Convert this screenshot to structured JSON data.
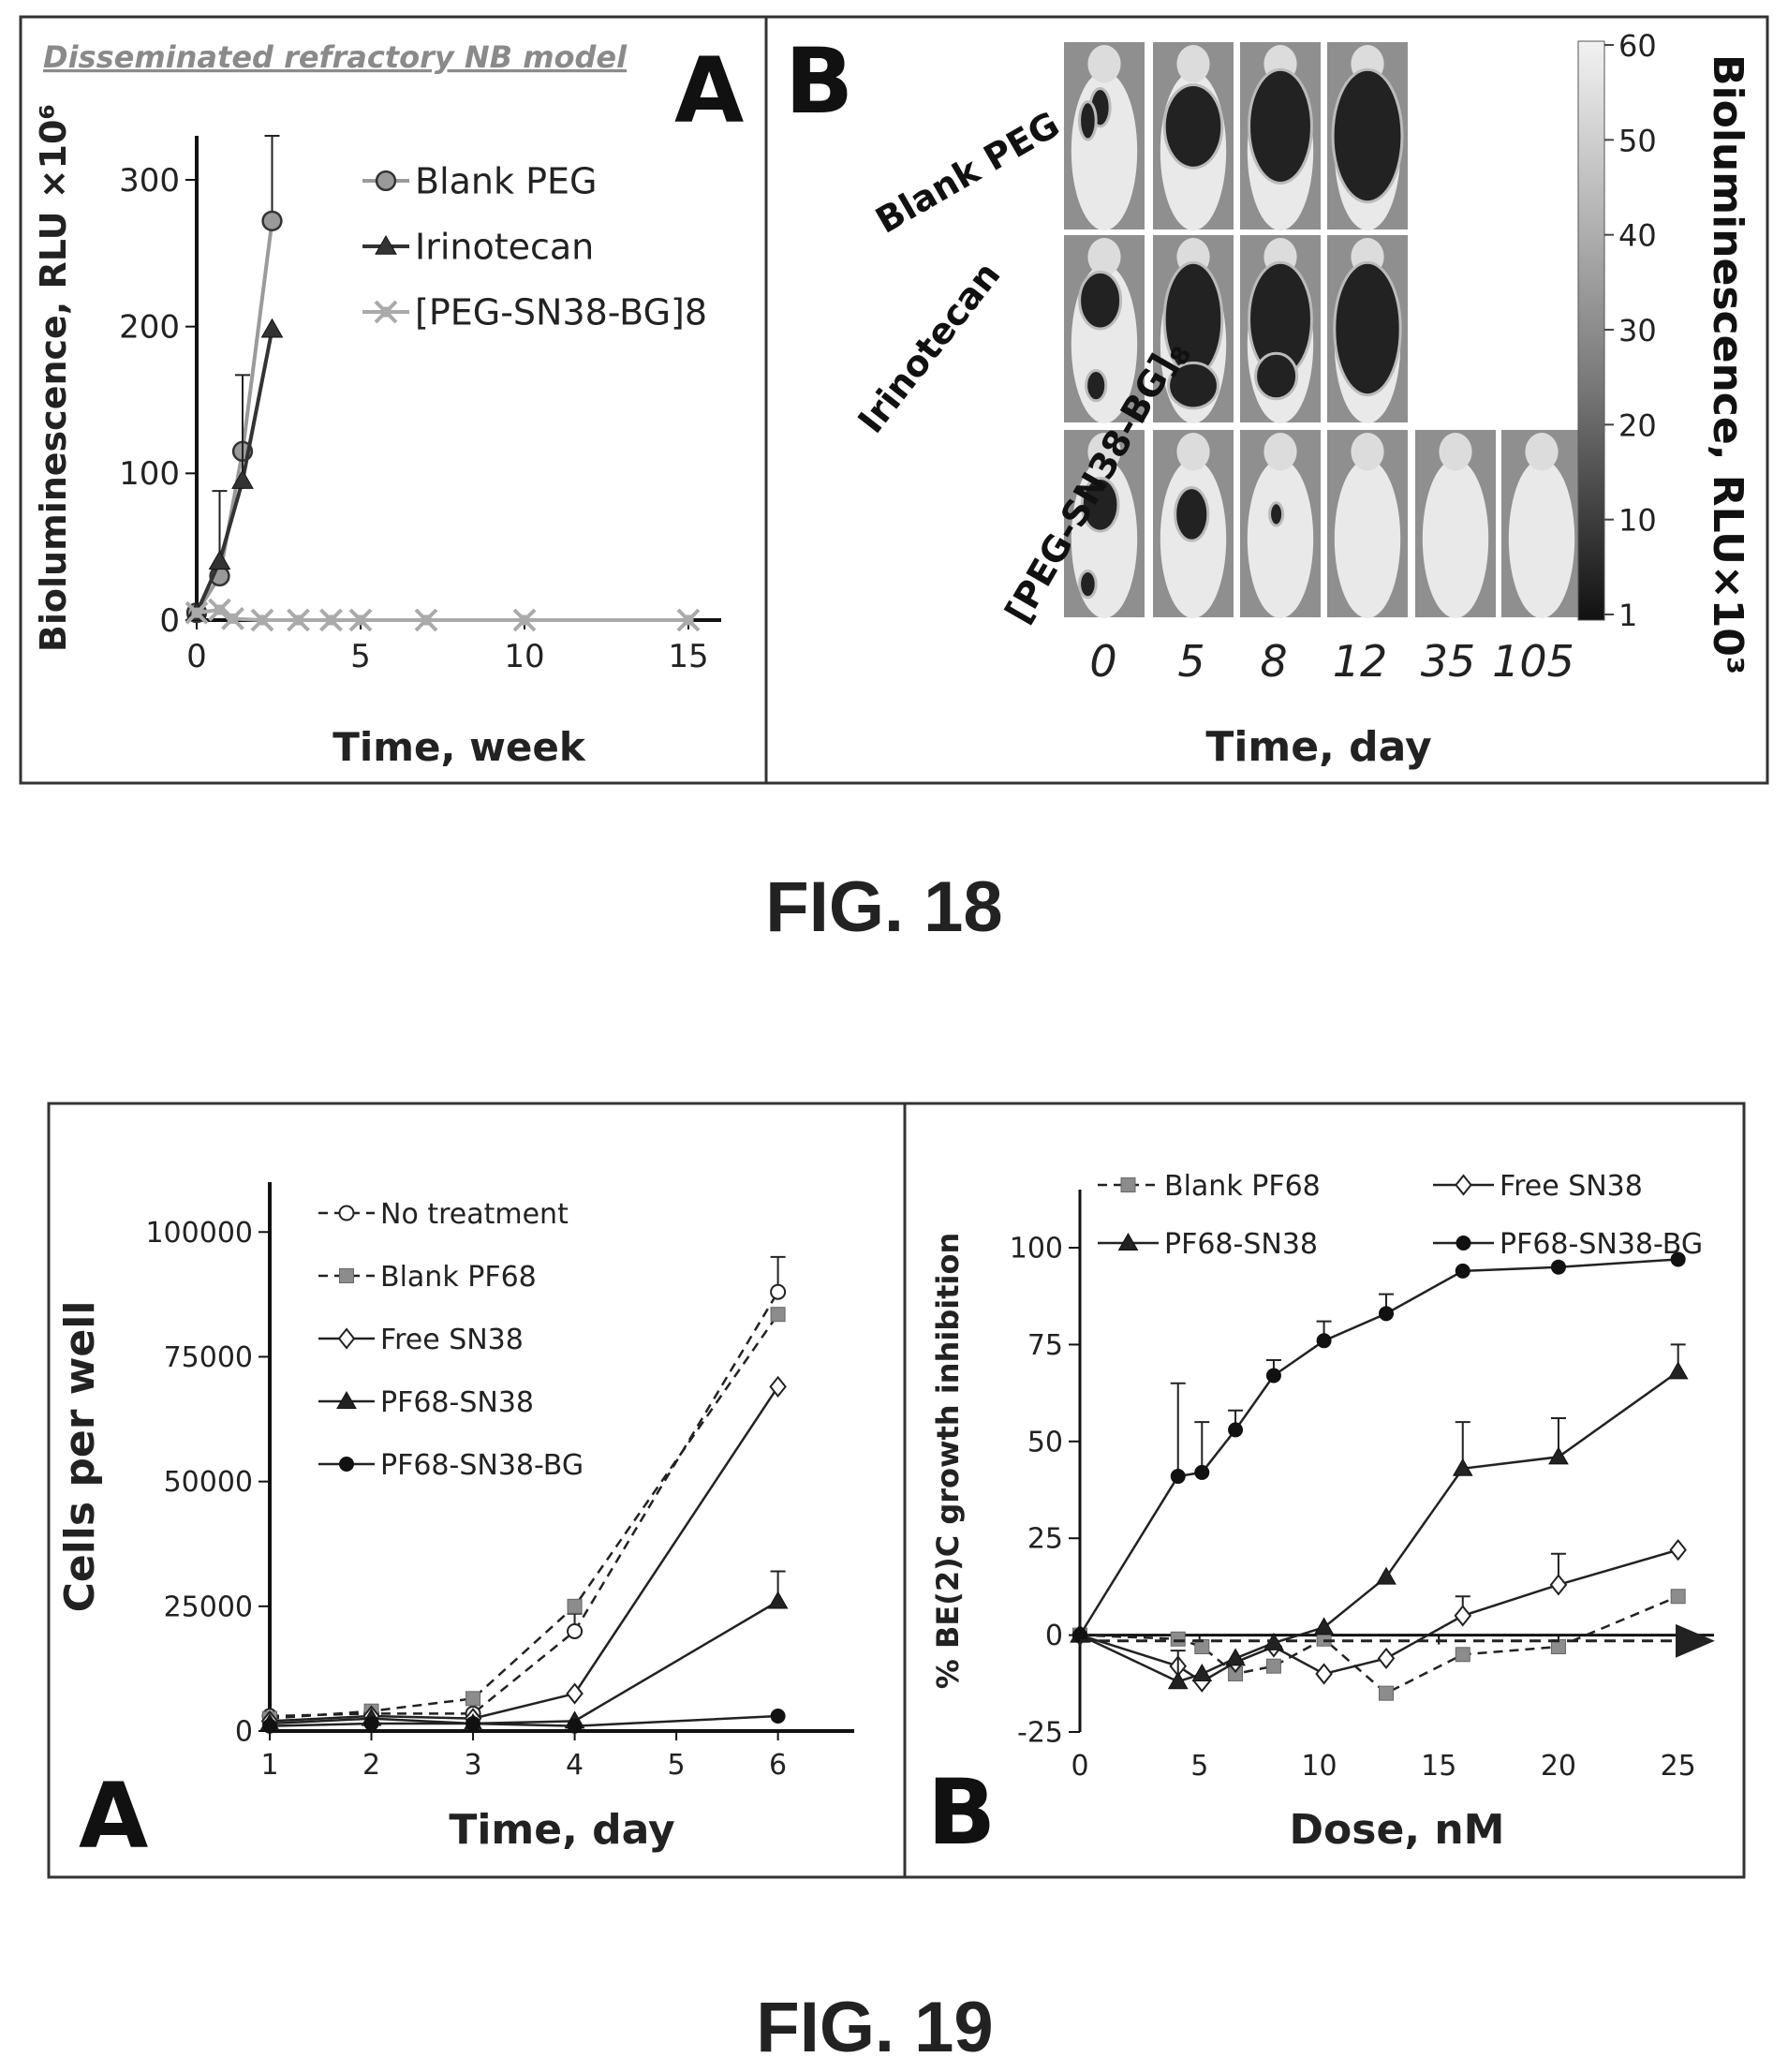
{
  "figures": [
    {
      "label": "FIG. 18"
    },
    {
      "label": "FIG. 19"
    }
  ],
  "fig18": {
    "panelA": {
      "letter": "A",
      "model_title": "Disseminated refractory NB model"
    },
    "panelB": {
      "letter": "B",
      "row_labels": [
        "Blank PEG",
        "Irinotecan",
        "[PEG-SN38-BG]8"
      ],
      "day_labels": [
        "0",
        "5",
        "8",
        "12",
        "35",
        "105"
      ],
      "xlabel": "Time, day",
      "colorbar_label": "Bioluminescence, RLU×10³",
      "colorbar_ticks": [
        "60",
        "50",
        "40",
        "30",
        "20",
        "10",
        "1"
      ]
    }
  },
  "fig19": {
    "panelA": {
      "letter": "A"
    },
    "panelB": {
      "letter": "B"
    }
  },
  "chart_data": [
    {
      "id": "fig18A",
      "type": "line",
      "title": "Disseminated refractory NB model",
      "xlabel": "Time, week",
      "ylabel": "Bioluminescence, RLU ×10⁶",
      "xlim": [
        0,
        16
      ],
      "ylim": [
        0,
        330
      ],
      "xticks": [
        "0",
        "5",
        "10",
        "15"
      ],
      "yticks": [
        "0",
        "100",
        "200",
        "300"
      ],
      "grid": false,
      "legend": "top-right",
      "series": [
        {
          "name": "Blank PEG",
          "marker": "circle",
          "color": "#9a9a9a",
          "x": [
            0,
            0.7,
            1.4,
            2.3
          ],
          "y": [
            5,
            30,
            115,
            272
          ],
          "err": [
            0,
            0,
            0,
            58
          ]
        },
        {
          "name": "Irinotecan",
          "marker": "triangle",
          "color": "#333333",
          "x": [
            0,
            0.7,
            1.4,
            2.3
          ],
          "y": [
            5,
            40,
            95,
            198
          ],
          "err": [
            0,
            48,
            72,
            0
          ]
        },
        {
          "name": "[PEG-SN38-BG]8",
          "marker": "x",
          "color": "#aaaaaa",
          "x": [
            0,
            0.7,
            1.1,
            2.0,
            3.1,
            4.1,
            5.0,
            7.0,
            10.0,
            15.0
          ],
          "y": [
            5,
            7,
            1,
            0,
            0,
            0,
            0,
            0,
            0,
            0
          ],
          "err": [
            0,
            0,
            0,
            0,
            0,
            0,
            0,
            0,
            0,
            0
          ]
        }
      ]
    },
    {
      "id": "fig19A",
      "type": "line",
      "xlabel": "Time, day",
      "ylabel": "Cells per well",
      "xlim": [
        1,
        6.75
      ],
      "ylim": [
        0,
        110000
      ],
      "xticks": [
        "1",
        "2",
        "3",
        "4",
        "5",
        "6"
      ],
      "yticks": [
        "0",
        "25000",
        "50000",
        "75000",
        "100000"
      ],
      "grid": false,
      "legend": "top-left",
      "series": [
        {
          "name": "No treatment",
          "marker": "open-circle",
          "dash": true,
          "x": [
            1,
            2,
            3,
            4,
            6
          ],
          "y": [
            3000,
            3500,
            3500,
            20000,
            88000
          ],
          "err": [
            0,
            0,
            0,
            3500,
            7000
          ]
        },
        {
          "name": "Blank PF68",
          "marker": "square",
          "dash": true,
          "x": [
            1,
            2,
            3,
            4,
            6
          ],
          "y": [
            2500,
            4000,
            6500,
            25000,
            83500
          ],
          "err": [
            0,
            0,
            0,
            0,
            0
          ]
        },
        {
          "name": "Free SN38",
          "marker": "open-diamond",
          "dash": false,
          "x": [
            1,
            2,
            3,
            4,
            6
          ],
          "y": [
            2000,
            3000,
            2500,
            7500,
            69000
          ],
          "err": [
            0,
            0,
            0,
            0,
            0
          ]
        },
        {
          "name": "PF68-SN38",
          "marker": "triangle",
          "dash": false,
          "x": [
            1,
            2,
            3,
            4,
            6
          ],
          "y": [
            1500,
            2500,
            1500,
            2000,
            26000
          ],
          "err": [
            0,
            0,
            0,
            0,
            6000
          ]
        },
        {
          "name": "PF68-SN38-BG",
          "marker": "filled-circle",
          "dash": false,
          "x": [
            1,
            2,
            3,
            4,
            6
          ],
          "y": [
            1000,
            1500,
            1500,
            1000,
            3000
          ],
          "err": [
            0,
            0,
            0,
            0,
            0
          ]
        }
      ]
    },
    {
      "id": "fig19B",
      "type": "line",
      "xlabel": "Dose, nM",
      "ylabel": "% BE(2)C growth inhibition",
      "xlim": [
        0,
        26.5
      ],
      "ylim": [
        -25,
        115
      ],
      "xticks": [
        "0",
        "5",
        "10",
        "15",
        "20",
        "25"
      ],
      "yticks": [
        "-25",
        "0",
        "25",
        "50",
        "75",
        "100"
      ],
      "grid": false,
      "legend": "top",
      "series": [
        {
          "name": "Blank PF68",
          "marker": "square",
          "dash": true,
          "x": [
            0,
            4.1,
            5.1,
            6.5,
            8.1,
            10.2,
            12.8,
            16,
            20,
            25
          ],
          "y": [
            0,
            -1,
            -3,
            -10,
            -8,
            -1,
            -15,
            -5,
            -3,
            10
          ],
          "err": [
            0,
            0,
            0,
            0,
            0,
            0,
            0,
            0,
            0,
            0
          ]
        },
        {
          "name": "Free SN38",
          "marker": "open-diamond",
          "dash": false,
          "x": [
            0,
            4.1,
            5.1,
            6.5,
            8.1,
            10.2,
            12.8,
            16,
            20,
            25
          ],
          "y": [
            0,
            -8,
            -12,
            -7,
            -3,
            -10,
            -6,
            5,
            13,
            22
          ],
          "err": [
            0,
            0,
            0,
            0,
            0,
            0,
            0,
            5,
            8,
            0
          ]
        },
        {
          "name": "PF68-SN38",
          "marker": "triangle",
          "dash": false,
          "x": [
            0,
            4.1,
            5.1,
            6.5,
            8.1,
            10.2,
            12.8,
            16,
            20,
            25
          ],
          "y": [
            0,
            -12,
            -10,
            -6,
            -2,
            2,
            15,
            43,
            46,
            68
          ],
          "err": [
            0,
            8,
            0,
            0,
            0,
            0,
            0,
            12,
            10,
            7
          ]
        },
        {
          "name": "PF68-SN38-BG",
          "marker": "filled-circle",
          "dash": false,
          "x": [
            0,
            4.1,
            5.1,
            6.5,
            8.1,
            10.2,
            12.8,
            16,
            20,
            25
          ],
          "y": [
            0,
            41,
            42,
            53,
            67,
            76,
            83,
            94,
            95,
            97
          ],
          "err": [
            0,
            24,
            13,
            5,
            4,
            5,
            5,
            0,
            0,
            0
          ]
        }
      ]
    }
  ]
}
